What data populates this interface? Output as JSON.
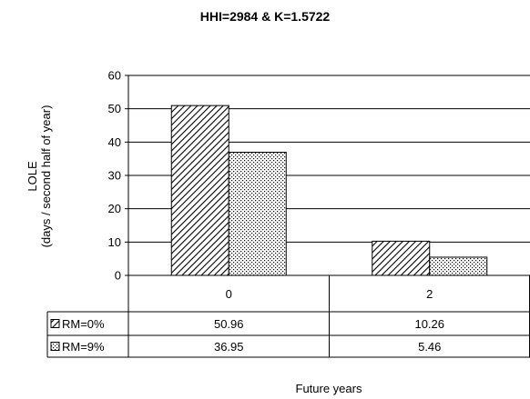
{
  "chart_data": {
    "type": "bar",
    "title": "HHI=2984 & K=1.5722",
    "ylabel_line1": "LOLE",
    "ylabel_line2": "(days / second half of year)",
    "xlabel": "Future years",
    "categories": [
      "0",
      "2"
    ],
    "ylim": [
      0,
      60
    ],
    "yticks": [
      "0",
      "10",
      "20",
      "30",
      "40",
      "50",
      "60"
    ],
    "grid": true,
    "legend": "data-table",
    "series": [
      {
        "name": "RM=0%",
        "pattern": "diagonal-hatch",
        "values": [
          50.96,
          10.26
        ],
        "value_labels": [
          "50.96",
          "10.26"
        ]
      },
      {
        "name": "RM=9%",
        "pattern": "dots",
        "values": [
          36.95,
          5.46
        ],
        "value_labels": [
          "36.95",
          "5.46"
        ]
      }
    ],
    "colors": {
      "bar_stroke": "#000000",
      "gridline": "#000000",
      "background": "#ffffff"
    }
  }
}
